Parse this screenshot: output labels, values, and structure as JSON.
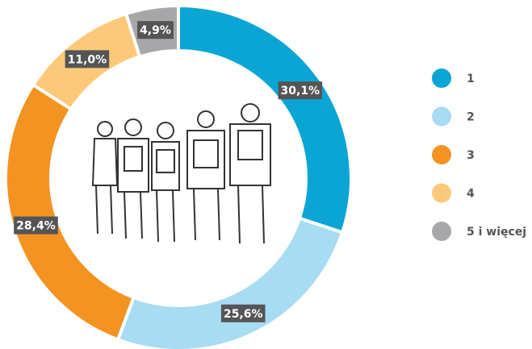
{
  "chart_data": {
    "type": "pie",
    "donut": true,
    "categories": [
      "1",
      "2",
      "3",
      "4",
      "5 i więcej"
    ],
    "values": [
      30.1,
      25.6,
      28.4,
      11.0,
      4.9
    ],
    "value_labels": [
      "30,1%",
      "25,6%",
      "28,4%",
      "11,0%",
      "4,9%"
    ],
    "colors": [
      "#0aa5d5",
      "#a7dcf3",
      "#f39322",
      "#fcc97b",
      "#a7a7a9"
    ],
    "legend": "right"
  }
}
